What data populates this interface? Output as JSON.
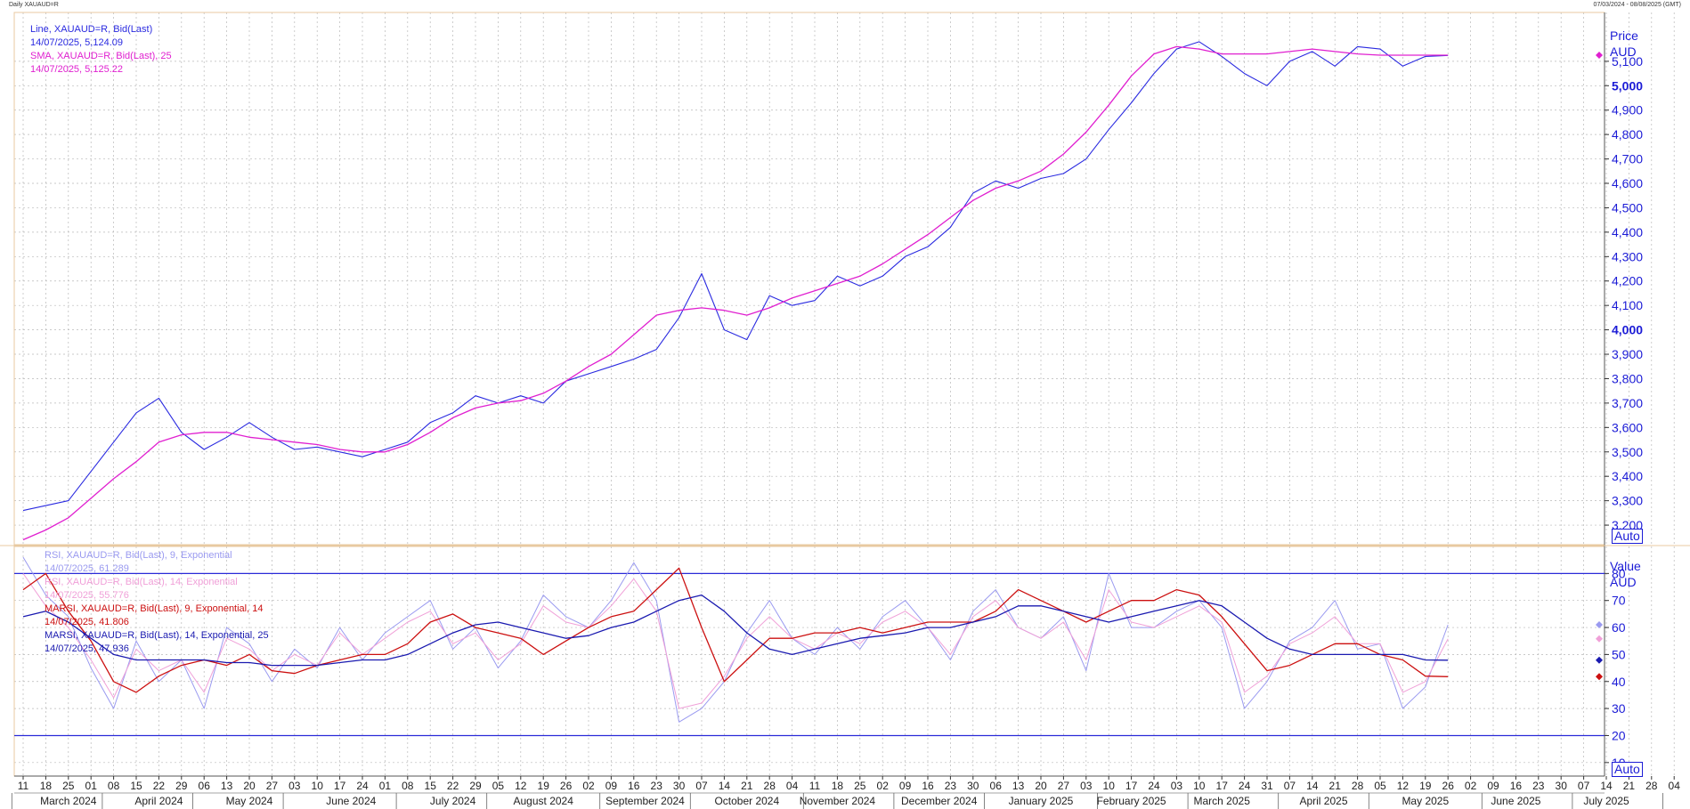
{
  "header": {
    "title": "Daily XAUAUD=R",
    "date_range": "07/03/2024 - 08/08/2025 (GMT)"
  },
  "colors": {
    "line": "#2a2ae0",
    "sma": "#e020d0",
    "rsi9": "#9a9af0",
    "rsi14": "#f0a0d8",
    "marsi9": "#cc1010",
    "marsi14": "#1a1ab0",
    "grid": "#b8b8b8",
    "axis_text": "#1b1bd6",
    "level_line": "#2a2ad8",
    "panel_border": "#e8c9a0"
  },
  "price_panel": {
    "axis_title": "Price",
    "axis_unit": "AUD",
    "auto_label": "Auto",
    "legend": [
      {
        "name": "Line, XAUAUD=R, Bid(Last)",
        "value": "14/07/2025, 5,124.09",
        "color": "#2a2ae0"
      },
      {
        "name": "SMA, XAUAUD=R, Bid(Last),  25",
        "value": "14/07/2025, 5,125.22",
        "color": "#e020d0"
      }
    ],
    "ticks": [
      {
        "v": 3200,
        "label": "3,200"
      },
      {
        "v": 3300,
        "label": "3,300"
      },
      {
        "v": 3400,
        "label": "3,400"
      },
      {
        "v": 3500,
        "label": "3,500"
      },
      {
        "v": 3600,
        "label": "3,600"
      },
      {
        "v": 3700,
        "label": "3,700"
      },
      {
        "v": 3800,
        "label": "3,800"
      },
      {
        "v": 3900,
        "label": "3,900"
      },
      {
        "v": 4000,
        "label": "4,000",
        "bold": true
      },
      {
        "v": 4100,
        "label": "4,100"
      },
      {
        "v": 4200,
        "label": "4,200"
      },
      {
        "v": 4300,
        "label": "4,300"
      },
      {
        "v": 4400,
        "label": "4,400"
      },
      {
        "v": 4500,
        "label": "4,500"
      },
      {
        "v": 4600,
        "label": "4,600"
      },
      {
        "v": 4700,
        "label": "4,700"
      },
      {
        "v": 4800,
        "label": "4,800"
      },
      {
        "v": 4900,
        "label": "4,900"
      },
      {
        "v": 5000,
        "label": "5,000",
        "bold": true
      },
      {
        "v": 5100,
        "label": "5,100"
      }
    ]
  },
  "rsi_panel": {
    "axis_title": "Value",
    "axis_unit": "AUD",
    "auto_label": "Auto",
    "legend": [
      {
        "name": "RSI, XAUAUD=R, Bid(Last),  9, Exponential",
        "value": "14/07/2025, 61.289",
        "color": "#9a9af0"
      },
      {
        "name": "RSI, XAUAUD=R, Bid(Last),  14, Exponential",
        "value": "14/07/2025, 55.776",
        "color": "#f0a0d8"
      },
      {
        "name": "MARSI, XAUAUD=R, Bid(Last),  9, Exponential, 14",
        "value": "14/07/2025, 41.806",
        "color": "#cc1010"
      },
      {
        "name": "MARSI, XAUAUD=R, Bid(Last),  14, Exponential, 25",
        "value": "14/07/2025, 47.936",
        "color": "#1a1ab0"
      }
    ],
    "ticks": [
      {
        "v": 10,
        "label": "10"
      },
      {
        "v": 20,
        "label": "20"
      },
      {
        "v": 30,
        "label": "30"
      },
      {
        "v": 40,
        "label": "40"
      },
      {
        "v": 50,
        "label": "50"
      },
      {
        "v": 60,
        "label": "60"
      },
      {
        "v": 70,
        "label": "70"
      },
      {
        "v": 80,
        "label": "80"
      }
    ],
    "levels": [
      20,
      80
    ]
  },
  "x_axis": {
    "day_ticks": [
      "11",
      "18",
      "25",
      "01",
      "08",
      "15",
      "22",
      "29",
      "06",
      "13",
      "20",
      "27",
      "03",
      "10",
      "17",
      "24",
      "01",
      "08",
      "15",
      "22",
      "29",
      "05",
      "12",
      "19",
      "26",
      "02",
      "09",
      "16",
      "23",
      "30",
      "07",
      "14",
      "21",
      "28",
      "04",
      "11",
      "18",
      "25",
      "02",
      "09",
      "16",
      "23",
      "30",
      "06",
      "13",
      "20",
      "27",
      "03",
      "10",
      "17",
      "24",
      "03",
      "10",
      "17",
      "24",
      "31",
      "07",
      "14",
      "21",
      "28",
      "05",
      "12",
      "19",
      "26",
      "02",
      "09",
      "16",
      "23",
      "30",
      "07",
      "14",
      "21",
      "28",
      "04"
    ],
    "months": [
      {
        "label": "March 2024",
        "at": 2.5
      },
      {
        "label": "April 2024",
        "at": 6.5
      },
      {
        "label": "May 2024",
        "at": 10.5
      },
      {
        "label": "June 2024",
        "at": 15
      },
      {
        "label": "July 2024",
        "at": 19.5
      },
      {
        "label": "August 2024",
        "at": 23.5
      },
      {
        "label": "September 2024",
        "at": 28
      },
      {
        "label": "October 2024",
        "at": 32.5
      },
      {
        "label": "November 2024",
        "at": 36.5
      },
      {
        "label": "December 2024",
        "at": 41
      },
      {
        "label": "January 2025",
        "at": 45.5
      },
      {
        "label": "February 2025",
        "at": 49.5
      },
      {
        "label": "March 2025",
        "at": 53.5
      },
      {
        "label": "April 2025",
        "at": 58
      },
      {
        "label": "May 2025",
        "at": 62.5
      },
      {
        "label": "June 2025",
        "at": 66.5
      },
      {
        "label": "July 2025",
        "at": 70.5
      }
    ],
    "month_bounds": [
      0,
      4,
      8,
      12,
      17,
      21,
      26,
      30,
      35,
      39,
      43,
      48,
      52,
      56,
      60,
      65,
      69,
      73
    ]
  },
  "chart_data": [
    {
      "type": "line",
      "title": "",
      "ylabel": "Price AUD",
      "ylim": [
        3120,
        5300
      ],
      "x_unit": "week index (0 = 11 March 2024)",
      "series": [
        {
          "name": "Line, XAUAUD=R, Bid(Last)",
          "values": [
            3260,
            3280,
            3300,
            3420,
            3540,
            3660,
            3720,
            3580,
            3510,
            3560,
            3620,
            3560,
            3510,
            3520,
            3500,
            3480,
            3510,
            3540,
            3620,
            3660,
            3730,
            3700,
            3730,
            3700,
            3790,
            3820,
            3850,
            3880,
            3920,
            4050,
            4230,
            4000,
            3960,
            4140,
            4100,
            4120,
            4220,
            4180,
            4220,
            4300,
            4340,
            4420,
            4560,
            4610,
            4580,
            4620,
            4640,
            4700,
            4820,
            4930,
            5050,
            5150,
            5180,
            5120,
            5050,
            5000,
            5100,
            5140,
            5080,
            5160,
            5150,
            5080,
            5120,
            5124
          ]
        },
        {
          "name": "SMA, XAUAUD=R, Bid(Last),  25",
          "values": [
            3140,
            3180,
            3230,
            3310,
            3390,
            3460,
            3540,
            3570,
            3580,
            3580,
            3560,
            3550,
            3540,
            3530,
            3510,
            3500,
            3500,
            3530,
            3580,
            3640,
            3680,
            3700,
            3710,
            3740,
            3790,
            3850,
            3900,
            3980,
            4060,
            4080,
            4090,
            4080,
            4060,
            4090,
            4130,
            4160,
            4190,
            4220,
            4270,
            4330,
            4390,
            4460,
            4530,
            4580,
            4610,
            4650,
            4720,
            4810,
            4920,
            5040,
            5130,
            5160,
            5150,
            5130,
            5130,
            5130,
            5140,
            5150,
            5140,
            5130,
            5125,
            5125,
            5125,
            5125
          ]
        }
      ]
    },
    {
      "type": "line",
      "title": "",
      "ylabel": "Value AUD",
      "ylim": [
        5,
        90
      ],
      "x_unit": "week index (0 = 11 March 2024)",
      "series": [
        {
          "name": "RSI, XAUAUD=R, Bid(Last),  9, Exponential",
          "values": [
            86,
            72,
            64,
            45,
            30,
            55,
            40,
            48,
            30,
            60,
            54,
            40,
            52,
            45,
            60,
            48,
            58,
            64,
            70,
            52,
            60,
            45,
            55,
            72,
            64,
            60,
            70,
            84,
            70,
            25,
            30,
            40,
            58,
            70,
            56,
            50,
            60,
            52,
            64,
            70,
            60,
            48,
            66,
            74,
            60,
            56,
            64,
            44,
            80,
            60,
            60,
            66,
            70,
            60,
            30,
            40,
            55,
            60,
            70,
            52,
            54,
            30,
            38,
            61
          ]
        },
        {
          "name": "RSI, XAUAUD=R, Bid(Last),  14, Exponential",
          "values": [
            80,
            68,
            60,
            48,
            34,
            52,
            44,
            48,
            36,
            56,
            52,
            44,
            50,
            46,
            58,
            50,
            56,
            62,
            66,
            54,
            58,
            48,
            54,
            68,
            62,
            60,
            68,
            78,
            66,
            30,
            32,
            42,
            56,
            64,
            56,
            52,
            58,
            54,
            62,
            66,
            60,
            50,
            64,
            70,
            60,
            56,
            62,
            48,
            74,
            62,
            60,
            64,
            68,
            62,
            36,
            42,
            54,
            58,
            64,
            54,
            54,
            36,
            40,
            55.8
          ]
        },
        {
          "name": "MARSI, XAUAUD=R, Bid(Last),  9, Exponential, 14",
          "values": [
            74,
            80,
            66,
            55,
            40,
            36,
            42,
            46,
            48,
            46,
            50,
            44,
            43,
            46,
            48,
            50,
            50,
            54,
            62,
            65,
            60,
            58,
            56,
            50,
            55,
            60,
            64,
            66,
            74,
            82,
            60,
            40,
            48,
            56,
            56,
            58,
            58,
            60,
            58,
            60,
            62,
            62,
            62,
            66,
            74,
            70,
            66,
            62,
            66,
            70,
            70,
            74,
            72,
            64,
            54,
            44,
            46,
            50,
            54,
            54,
            50,
            48,
            42,
            41.8
          ]
        },
        {
          "name": "MARSI, XAUAUD=R, Bid(Last),  14, Exponential, 25",
          "values": [
            64,
            66,
            62,
            56,
            50,
            48,
            48,
            48,
            48,
            47,
            47,
            46,
            46,
            46,
            47,
            48,
            48,
            50,
            54,
            58,
            61,
            62,
            60,
            58,
            56,
            57,
            60,
            62,
            66,
            70,
            72,
            66,
            58,
            52,
            50,
            52,
            54,
            56,
            57,
            58,
            60,
            60,
            62,
            64,
            68,
            68,
            66,
            64,
            62,
            64,
            66,
            68,
            70,
            68,
            62,
            56,
            52,
            50,
            50,
            50,
            50,
            50,
            48,
            47.9
          ]
        }
      ]
    }
  ]
}
